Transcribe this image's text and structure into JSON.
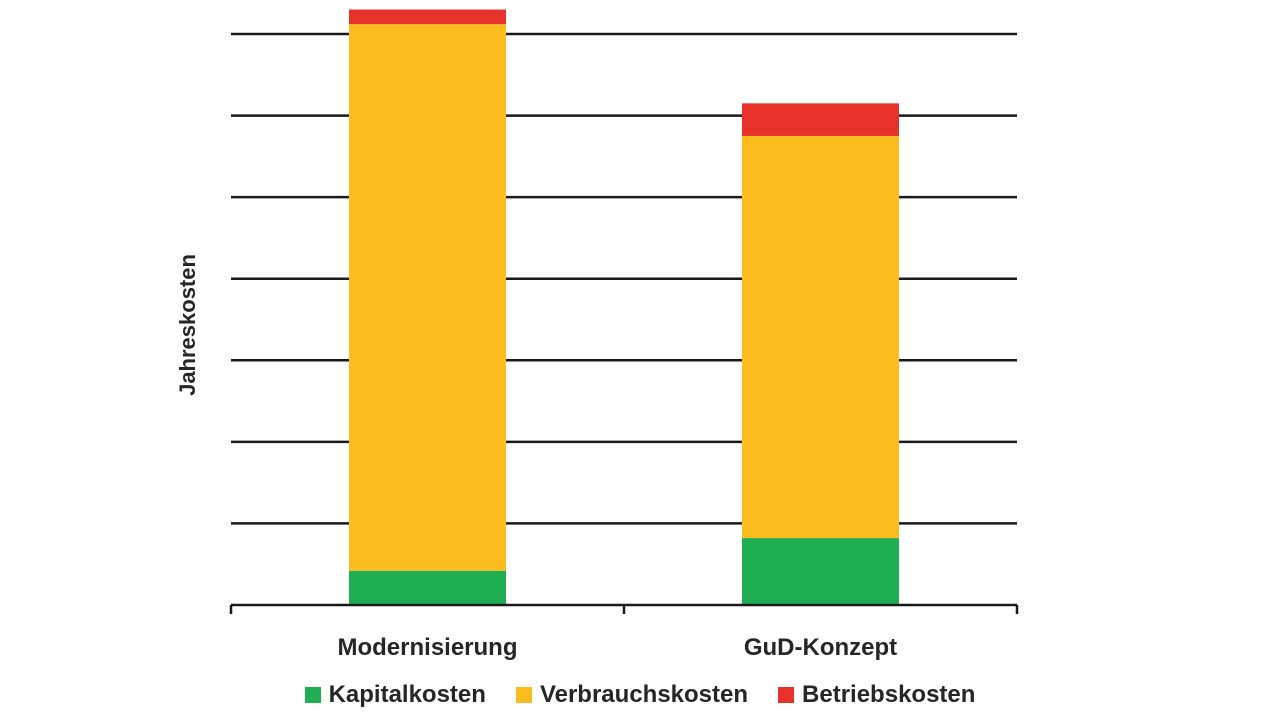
{
  "chart_data": {
    "type": "bar",
    "stacked": true,
    "title": "",
    "xlabel": "",
    "ylabel": "Jahreskosten",
    "ylim": [
      0,
      7
    ],
    "ytick_count": 7,
    "y_tick_labels_visible": false,
    "grid": true,
    "legend_position": "bottom",
    "categories": [
      "Modernisierung",
      "GuD-Konzept"
    ],
    "series": [
      {
        "name": "Kapitalkosten",
        "color": "#1fae52",
        "values": [
          0.42,
          0.82
        ]
      },
      {
        "name": "Verbrauchskosten",
        "color": "#fbbd1e",
        "values": [
          6.7,
          4.93
        ]
      },
      {
        "name": "Betriebskosten",
        "color": "#e8312a",
        "values": [
          0.18,
          0.4
        ]
      }
    ]
  }
}
